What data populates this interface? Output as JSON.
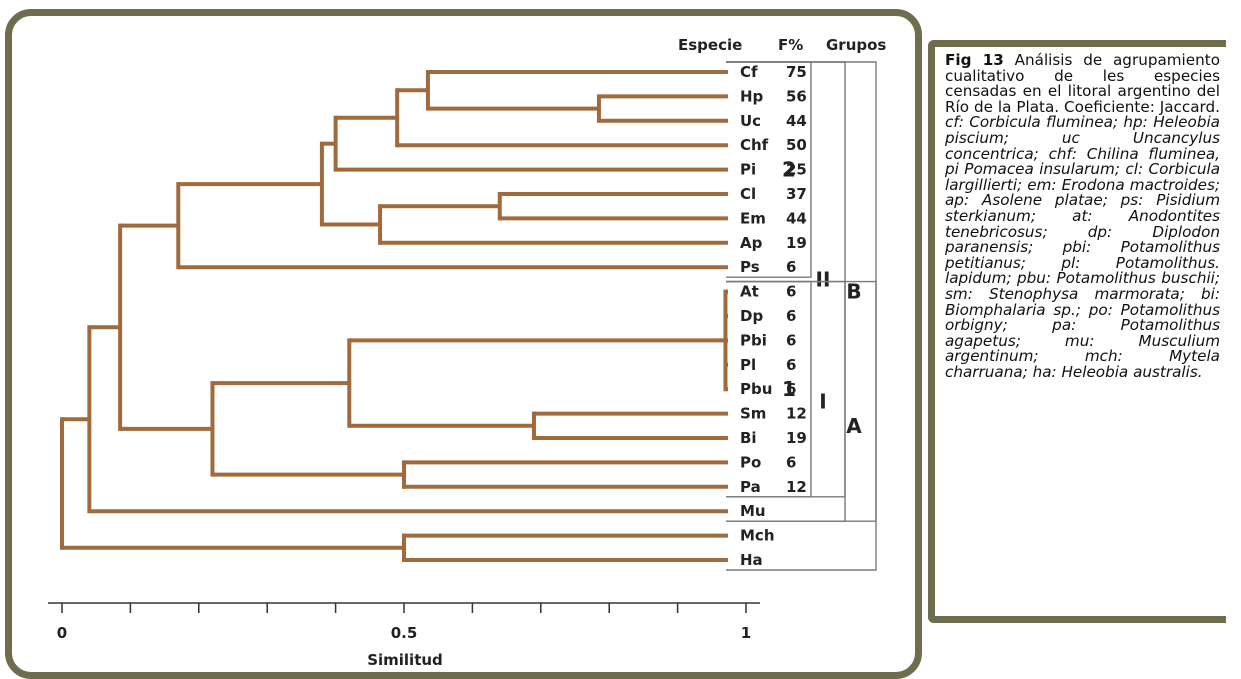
{
  "headers": {
    "species": "Especie",
    "freq": "F%",
    "groups": "Grupos"
  },
  "axis": {
    "title": "Similitud",
    "ticks": [
      0,
      0.1,
      0.2,
      0.3,
      0.4,
      0.5,
      0.6,
      0.7,
      0.8,
      0.9,
      1
    ],
    "tick_labels": [
      {
        "value": 0,
        "text": "0"
      },
      {
        "value": 0.5,
        "text": "0.5"
      },
      {
        "value": 1,
        "text": "1"
      }
    ],
    "range": [
      0,
      1
    ]
  },
  "leaves": [
    {
      "code": "Cf",
      "freq": "75"
    },
    {
      "code": "Hp",
      "freq": "56"
    },
    {
      "code": "Uc",
      "freq": "44"
    },
    {
      "code": "Chf",
      "freq": "50"
    },
    {
      "code": "Pi",
      "freq": "25"
    },
    {
      "code": "Cl",
      "freq": "37"
    },
    {
      "code": "Em",
      "freq": "44"
    },
    {
      "code": "Ap",
      "freq": "19"
    },
    {
      "code": "Ps",
      "freq": "6"
    },
    {
      "code": "At",
      "freq": "6"
    },
    {
      "code": "Dp",
      "freq": "6"
    },
    {
      "code": "Pbi",
      "freq": "6"
    },
    {
      "code": "Pl",
      "freq": "6"
    },
    {
      "code": "Pbu",
      "freq": "6"
    },
    {
      "code": "Sm",
      "freq": "12"
    },
    {
      "code": "Bi",
      "freq": "19"
    },
    {
      "code": "Po",
      "freq": "6"
    },
    {
      "code": "Pa",
      "freq": "12"
    },
    {
      "code": "Mu",
      "freq": ""
    },
    {
      "code": "Mch",
      "freq": ""
    },
    {
      "code": "Ha",
      "freq": ""
    }
  ],
  "merges": [
    {
      "id": "n1",
      "children": [
        1,
        2
      ],
      "similarity": 0.785
    },
    {
      "id": "n2",
      "children": [
        0,
        "n1"
      ],
      "similarity": 0.535
    },
    {
      "id": "n3",
      "children": [
        "n2",
        3
      ],
      "similarity": 0.49
    },
    {
      "id": "n4",
      "children": [
        "n3",
        4
      ],
      "similarity": 0.4
    },
    {
      "id": "n5",
      "children": [
        5,
        6
      ],
      "similarity": 0.64
    },
    {
      "id": "n6",
      "children": [
        "n5",
        7
      ],
      "similarity": 0.465
    },
    {
      "id": "n7",
      "children": [
        "n4",
        "n6"
      ],
      "similarity": 0.38
    },
    {
      "id": "n8",
      "children": [
        "n7",
        8
      ],
      "similarity": 0.17
    },
    {
      "id": "n9",
      "children": [
        9,
        10,
        11,
        12,
        13
      ],
      "similarity": 0.97
    },
    {
      "id": "n10",
      "children": [
        14,
        15
      ],
      "similarity": 0.69
    },
    {
      "id": "n11",
      "children": [
        "n9",
        "n10"
      ],
      "similarity": 0.42
    },
    {
      "id": "n12",
      "children": [
        16,
        17
      ],
      "similarity": 0.5
    },
    {
      "id": "n13",
      "children": [
        "n11",
        "n12"
      ],
      "similarity": 0.22
    },
    {
      "id": "n14",
      "children": [
        "n8",
        "n13"
      ],
      "similarity": 0.085
    },
    {
      "id": "n15",
      "children": [
        "n14",
        18
      ],
      "similarity": 0.04
    },
    {
      "id": "n16",
      "children": [
        19,
        20
      ],
      "similarity": 0.5
    },
    {
      "id": "n17",
      "children": [
        "n15",
        "n16"
      ],
      "similarity": 0.0
    }
  ],
  "groups": [
    {
      "label": "2",
      "level": 1,
      "from": 0,
      "to": 8
    },
    {
      "label": "1",
      "level": 1,
      "from": 9,
      "to": 17
    },
    {
      "label": "II",
      "level": 2,
      "from": 0,
      "to": 17
    },
    {
      "label": "I",
      "level": 2,
      "from": 9,
      "to": 18
    },
    {
      "label": "B",
      "level": 3,
      "from": 0,
      "to": 18
    },
    {
      "label": "A",
      "level": 3,
      "from": 9,
      "to": 20
    }
  ],
  "colors": {
    "branch": "#a06a3c",
    "frame": "#6e6e4e",
    "bracket": "#7a7a7a",
    "text": "#222222"
  },
  "caption": {
    "fig_label": "Fig 13",
    "segments": [
      {
        "t": " Análisis de agrupamiento cualitativo de les especies censadas en el litoral argentino del Río de la Plata. Coeficiente: Jaccard. ",
        "i": false
      },
      {
        "t": "cf: Corbicula fluminea; hp: Heleobia piscium; uc Uncancylus concentrica; chf: Chilina fluminea, pi Pomacea insularum; cl: Corbicula largillierti; em: Erodona mactroides; ap: Asolene platae; ps: Pisidium sterkianum; at: Anodontites tenebricosus; dp: Diplodon paranensis; pbi: Potamolithus petitianus; pl: Potamolithus. lapidum; pbu: Potamolithus buschii; sm: Stenophysa marmorata; bi: Biomphalaria sp.; po: Potamolithus orbigny; pa: Potamolithus agapetus; mu: Musculium argentinum; mch: Mytela charruana; ha: Heleobia australis.",
        "i": true
      }
    ]
  }
}
